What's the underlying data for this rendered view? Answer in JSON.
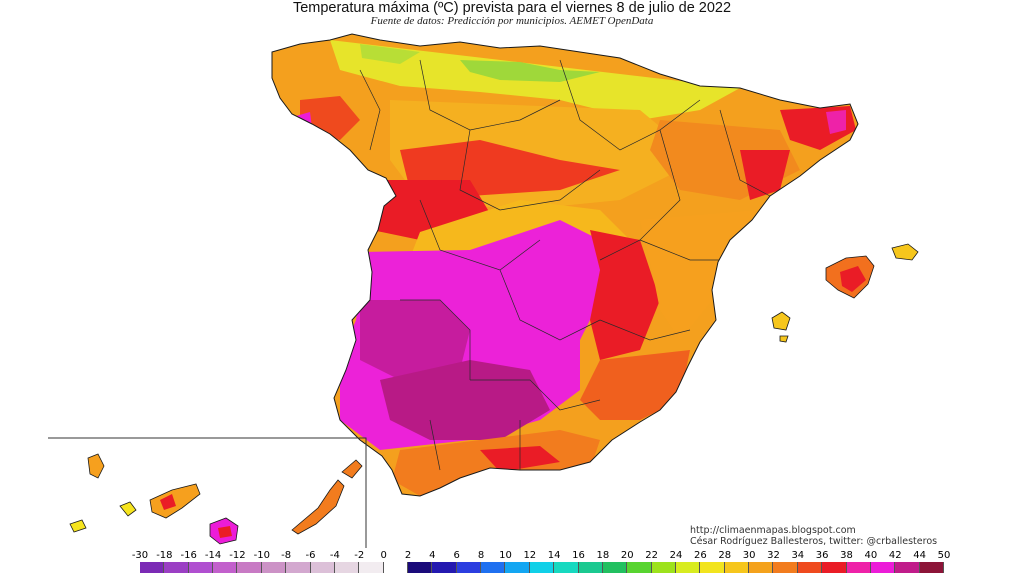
{
  "title": "Temperatura máxima (ºC) prevista para el viernes 8 de julio de 2022",
  "subtitle": "Fuente de datos: Predicción por municipios. AEMET OpenData",
  "credit": {
    "line1": "http://climaenmapas.blogspot.com",
    "line2": "César Rodríguez Ballesteros, twitter: @crballesteros"
  },
  "legend": {
    "ticks": [
      "-30",
      "-18",
      "-16",
      "-14",
      "-12",
      "-10",
      "-8",
      "-6",
      "-4",
      "-2",
      "0",
      "2",
      "4",
      "6",
      "8",
      "10",
      "12",
      "14",
      "16",
      "18",
      "20",
      "22",
      "24",
      "26",
      "28",
      "30",
      "32",
      "34",
      "36",
      "38",
      "40",
      "42",
      "44",
      "50"
    ],
    "colors": [
      "#7b2ab5",
      "#9b3fc4",
      "#b04fd0",
      "#c260cc",
      "#c87ac4",
      "#cc92c6",
      "#d3a8cf",
      "#dcc0d8",
      "#e6d6e2",
      "#f2ecf0",
      "#ffffff",
      "#1a0a7a",
      "#2419b0",
      "#2b3ee0",
      "#1f70f0",
      "#13a6f2",
      "#10d0e8",
      "#17d9c0",
      "#1bc990",
      "#22c060",
      "#58d430",
      "#9de21c",
      "#d8ec20",
      "#f2e41e",
      "#f6c61c",
      "#f4a21c",
      "#f27c1e",
      "#ef4a1e",
      "#ea1c26",
      "#ee22a8",
      "#ec1cd8",
      "#c01c8a",
      "#8c1438"
    ]
  },
  "regions": [
    {
      "name": "meseta-norte",
      "color": "#f5a820"
    },
    {
      "name": "cantabria",
      "color": "#e9e61e"
    },
    {
      "name": "galicia-costa",
      "color": "#f27c1e"
    },
    {
      "name": "extremadura",
      "color": "#dd22c4"
    },
    {
      "name": "andalucia",
      "color": "#cc2090"
    },
    {
      "name": "levante",
      "color": "#f5a020"
    },
    {
      "name": "centro-sur",
      "color": "#ee2ad6"
    },
    {
      "name": "baleares",
      "color": "#f27c1e"
    },
    {
      "name": "canarias",
      "color": "#f29a1e"
    }
  ]
}
